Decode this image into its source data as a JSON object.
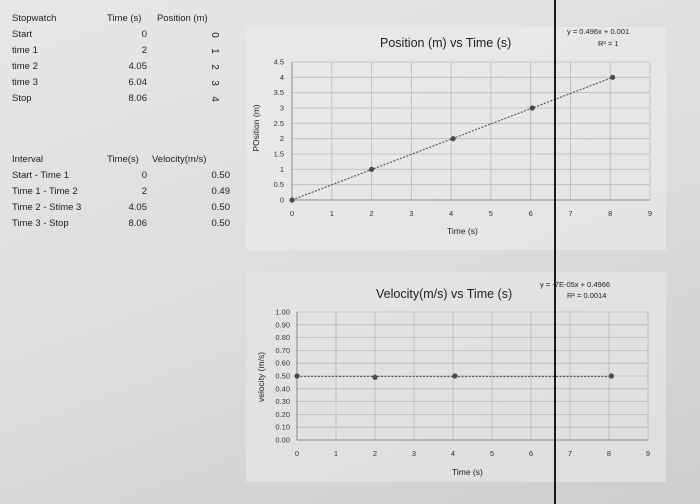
{
  "table1": {
    "headers": [
      "Stopwatch",
      "Time (s)",
      "Position (m)"
    ],
    "rows": [
      {
        "label": "Start",
        "time": "0",
        "position": "0"
      },
      {
        "label": "time 1",
        "time": "2",
        "position": "1"
      },
      {
        "label": "time 2",
        "time": "4.05",
        "position": "2"
      },
      {
        "label": "time 3",
        "time": "6.04",
        "position": "3"
      },
      {
        "label": "Stop",
        "time": "8.06",
        "position": "4"
      }
    ]
  },
  "table2": {
    "headers": [
      "Interval",
      "Time(s)",
      "Velocity(m/s)"
    ],
    "rows": [
      {
        "label": "Start - Time 1",
        "time": "0",
        "velocity": "0.50"
      },
      {
        "label": "Time 1 - Time 2",
        "time": "2",
        "velocity": "0.49"
      },
      {
        "label": "Time 2 - Stime 3",
        "time": "4.05",
        "velocity": "0.50"
      },
      {
        "label": "Time 3 - Stop",
        "time": "8.06",
        "velocity": "0.50"
      }
    ]
  },
  "chart_data": [
    {
      "type": "scatter",
      "title": "Position (m) vs Time (s)",
      "xlabel": "Time (s)",
      "ylabel": "POsition (m)",
      "xlim": [
        0,
        9
      ],
      "ylim": [
        0,
        4.5
      ],
      "x_ticks": [
        "0",
        "1",
        "2",
        "3",
        "4",
        "5",
        "6",
        "7",
        "8",
        "9"
      ],
      "y_ticks": [
        "0",
        "0.5",
        "1",
        "1.5",
        "2",
        "2.5",
        "3",
        "3.5",
        "4",
        "4.5"
      ],
      "series": [
        {
          "x": [
            0,
            2,
            4.05,
            6.04,
            8.06
          ],
          "y": [
            0,
            1,
            2,
            3,
            4
          ]
        }
      ],
      "trendline": {
        "equation": "y = 0.496x + 0.001",
        "r2": "R² = 1",
        "slope": 0.496,
        "intercept": 0.001
      },
      "grid": true
    },
    {
      "type": "scatter",
      "title": "Velocity(m/s) vs Time (s)",
      "xlabel": "Time (s)",
      "ylabel": "velocity (m/s)",
      "xlim": [
        0,
        9
      ],
      "ylim": [
        0,
        1
      ],
      "x_ticks": [
        "0",
        "1",
        "2",
        "3",
        "4",
        "5",
        "6",
        "7",
        "8",
        "9"
      ],
      "y_ticks": [
        "0.00",
        "0.10",
        "0.20",
        "0.30",
        "0.40",
        "0.50",
        "0.60",
        "0.70",
        "0.80",
        "0.90",
        "1.00"
      ],
      "series": [
        {
          "x": [
            0,
            2,
            4.05,
            8.06
          ],
          "y": [
            0.5,
            0.49,
            0.5,
            0.5
          ]
        }
      ],
      "trendline": {
        "equation": "y = -7E-05x + 0.4966",
        "r2": "R² = 0.0014",
        "slope": -7e-05,
        "intercept": 0.4966
      },
      "grid": true
    }
  ]
}
